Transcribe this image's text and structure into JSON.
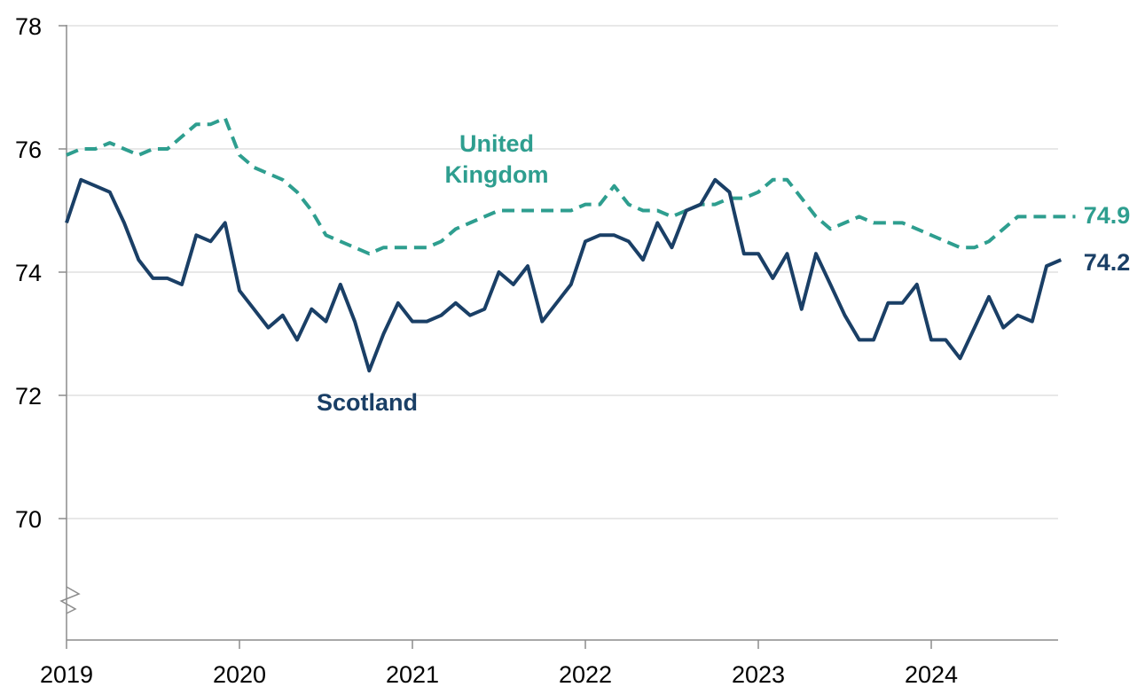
{
  "chart_data": {
    "type": "line",
    "title": "",
    "xlabel": "",
    "ylabel": "",
    "ylim": [
      68,
      78
    ],
    "y_axis_broken": true,
    "grid": "horizontal",
    "x_tick_labels": [
      "2019",
      "2020",
      "2021",
      "2022",
      "2023",
      "2024"
    ],
    "y_tick_labels": [
      "70",
      "72",
      "74",
      "76",
      "78"
    ],
    "x_start": "2019-01",
    "frequency": "monthly",
    "series": [
      {
        "name": "United Kingdom",
        "label_lines": [
          "United",
          "Kingdom"
        ],
        "color": "#2e9e8f",
        "style": "dashed",
        "end_label": "74.9",
        "values": [
          75.9,
          76.0,
          76.0,
          76.1,
          76.0,
          75.9,
          76.0,
          76.0,
          76.2,
          76.4,
          76.4,
          76.5,
          75.9,
          75.7,
          75.6,
          75.5,
          75.3,
          75.0,
          74.6,
          74.5,
          74.4,
          74.3,
          74.4,
          74.4,
          74.4,
          74.4,
          74.5,
          74.7,
          74.8,
          74.9,
          75.0,
          75.0,
          75.0,
          75.0,
          75.0,
          75.0,
          75.1,
          75.1,
          75.4,
          75.1,
          75.0,
          75.0,
          74.9,
          75.0,
          75.1,
          75.1,
          75.2,
          75.2,
          75.3,
          75.5,
          75.5,
          75.2,
          74.9,
          74.7,
          74.8,
          74.9,
          74.8,
          74.8,
          74.8,
          74.7,
          74.6,
          74.5,
          74.4,
          74.4,
          74.5,
          74.7,
          74.9,
          74.9,
          74.9,
          74.9,
          74.9
        ]
      },
      {
        "name": "Scotland",
        "label_lines": [
          "Scotland"
        ],
        "color": "#1a3f66",
        "style": "solid",
        "end_label": "74.2",
        "values": [
          74.8,
          75.5,
          75.4,
          75.3,
          74.8,
          74.2,
          73.9,
          73.9,
          73.8,
          74.6,
          74.5,
          74.8,
          73.7,
          73.4,
          73.1,
          73.3,
          72.9,
          73.4,
          73.2,
          73.8,
          73.2,
          72.4,
          73.0,
          73.5,
          73.2,
          73.2,
          73.3,
          73.5,
          73.3,
          73.4,
          74.0,
          73.8,
          74.1,
          73.2,
          73.5,
          73.8,
          74.5,
          74.6,
          74.6,
          74.5,
          74.2,
          74.8,
          74.4,
          75.0,
          75.1,
          75.5,
          75.3,
          74.3,
          74.3,
          73.9,
          74.3,
          73.4,
          74.3,
          73.8,
          73.3,
          72.9,
          72.9,
          73.5,
          73.5,
          73.8,
          72.9,
          72.9,
          72.6,
          73.1,
          73.6,
          73.1,
          73.3,
          73.2,
          74.1,
          74.2
        ]
      }
    ]
  }
}
